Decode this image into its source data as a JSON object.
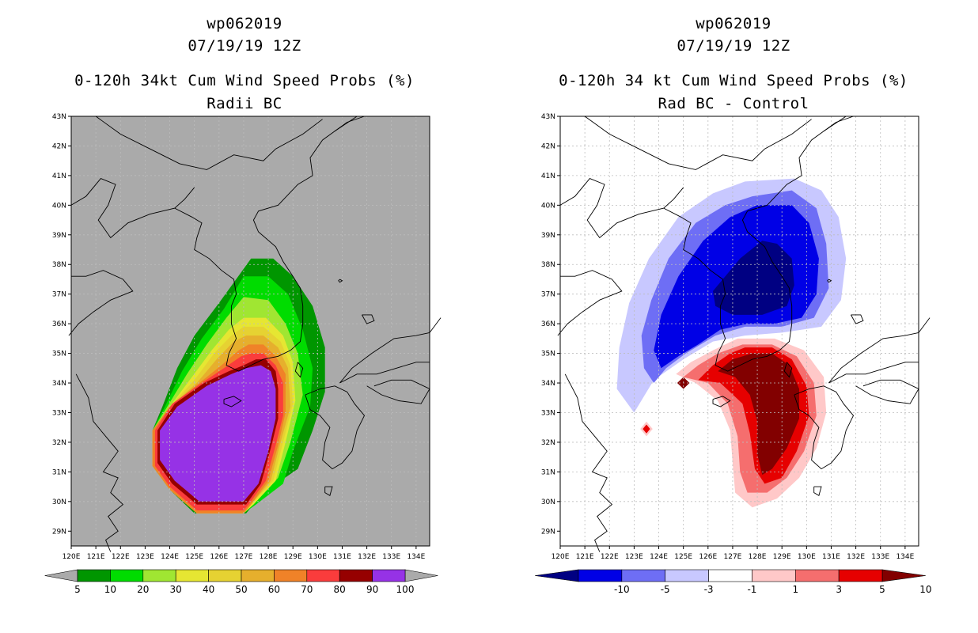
{
  "left": {
    "storm_id": "wp062019",
    "datetime": "07/19/19 12Z",
    "title": "0-120h 34kt Cum Wind Speed Probs (%)",
    "subtitle": "Radii BC",
    "colors": [
      "#009600",
      "#00dc00",
      "#a0e632",
      "#e6e632",
      "#e6d232",
      "#e6af2d",
      "#f08228",
      "#fa3c3c",
      "#960000",
      "#9632e6"
    ],
    "colorbar_labels": [
      "5",
      "10",
      "20",
      "30",
      "40",
      "50",
      "60",
      "70",
      "80",
      "90",
      "100"
    ]
  },
  "right": {
    "storm_id": "wp062019",
    "datetime": "07/19/19 12Z",
    "title": "0-120h 34 kt Cum Wind Speed Probs (%)",
    "subtitle": "Rad BC - Control",
    "colors": [
      "#000082",
      "#0000e6",
      "#6e6ef5",
      "#c8c8ff",
      "#ffffff",
      "#ffc8c8",
      "#f56e6e",
      "#e60000",
      "#820000"
    ],
    "colorbar_labels": [
      "-10",
      "-5",
      "-3",
      "-1",
      "1",
      "3",
      "5",
      "10"
    ]
  },
  "axes": {
    "lat_labels": [
      "43N",
      "42N",
      "41N",
      "40N",
      "39N",
      "38N",
      "37N",
      "36N",
      "35N",
      "34N",
      "33N",
      "32N",
      "31N",
      "30N",
      "29N"
    ],
    "lon_labels": [
      "120E",
      "121E",
      "122E",
      "123E",
      "124E",
      "125E",
      "126E",
      "127E",
      "128E",
      "129E",
      "130E",
      "131E",
      "132E",
      "133E",
      "134E"
    ]
  }
}
